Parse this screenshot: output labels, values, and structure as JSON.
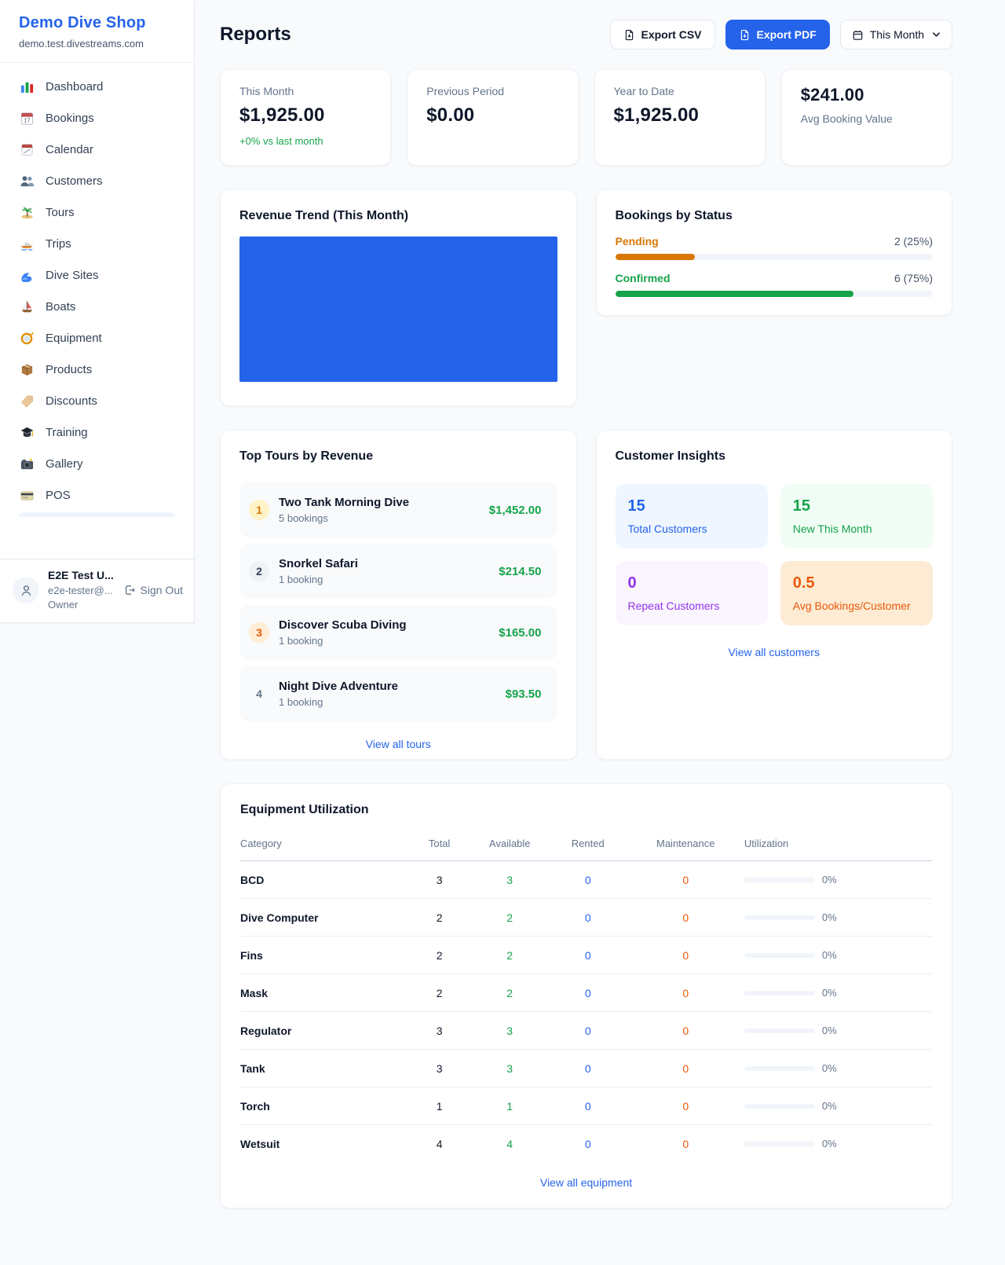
{
  "colors": {
    "accent": "#2563eb",
    "positive_green": "#16a34a",
    "pending_orange": "#d97706",
    "maintenance_orange": "#ea580c",
    "rented_blue": "#2563eb",
    "repeat_purple": "#9333ea",
    "revenue_chart_blue": "#2563eb"
  },
  "sidebar": {
    "title": "Demo Dive Shop",
    "subdomain": "demo.test.divestreams.com",
    "items": [
      {
        "icon": "dashboard-icon",
        "label": "Dashboard"
      },
      {
        "icon": "bookings-icon",
        "label": "Bookings"
      },
      {
        "icon": "calendar-icon",
        "label": "Calendar"
      },
      {
        "icon": "customers-icon",
        "label": "Customers"
      },
      {
        "icon": "tours-icon",
        "label": "Tours"
      },
      {
        "icon": "trips-icon",
        "label": "Trips"
      },
      {
        "icon": "dive-sites-icon",
        "label": "Dive Sites"
      },
      {
        "icon": "boats-icon",
        "label": "Boats"
      },
      {
        "icon": "equipment-icon",
        "label": "Equipment"
      },
      {
        "icon": "products-icon",
        "label": "Products"
      },
      {
        "icon": "discounts-icon",
        "label": "Discounts"
      },
      {
        "icon": "training-icon",
        "label": "Training"
      },
      {
        "icon": "gallery-icon",
        "label": "Gallery"
      },
      {
        "icon": "pos-icon",
        "label": "POS"
      }
    ],
    "user": {
      "name": "E2E Test U...",
      "email": "e2e-tester@...",
      "role": "Owner",
      "sign_out_label": "Sign Out"
    }
  },
  "header": {
    "title": "Reports",
    "export_csv_label": "Export CSV",
    "export_pdf_label": "Export PDF",
    "period_label": "This Month"
  },
  "stats": {
    "this_month": {
      "label": "This Month",
      "value": "$1,925.00",
      "delta": "+0% vs last month"
    },
    "previous_period": {
      "label": "Previous Period",
      "value": "$0.00"
    },
    "year_to_date": {
      "label": "Year to Date",
      "value": "$1,925.00"
    },
    "avg_booking": {
      "value": "$241.00",
      "label": "Avg Booking Value"
    }
  },
  "revenue_trend": {
    "title": "Revenue Trend (This Month)"
  },
  "bookings_by_status": {
    "title": "Bookings by Status",
    "rows": [
      {
        "label": "Pending",
        "value": "2 (25%)",
        "pct": 25
      },
      {
        "label": "Confirmed",
        "value": "6 (75%)",
        "pct": 75
      }
    ]
  },
  "top_tours": {
    "title": "Top Tours by Revenue",
    "items": [
      {
        "rank": "1",
        "name": "Two Tank Morning Dive",
        "bookings": "5 bookings",
        "revenue": "$1,452.00"
      },
      {
        "rank": "2",
        "name": "Snorkel Safari",
        "bookings": "1 booking",
        "revenue": "$214.50"
      },
      {
        "rank": "3",
        "name": "Discover Scuba Diving",
        "bookings": "1 booking",
        "revenue": "$165.00"
      },
      {
        "rank": "4",
        "name": "Night Dive Adventure",
        "bookings": "1 booking",
        "revenue": "$93.50"
      }
    ],
    "link_label": "View all tours"
  },
  "customer_insights": {
    "title": "Customer Insights",
    "tiles": [
      {
        "value": "15",
        "label": "Total Customers"
      },
      {
        "value": "15",
        "label": "New This Month"
      },
      {
        "value": "0",
        "label": "Repeat Customers"
      },
      {
        "value": "0.5",
        "label": "Avg Bookings/Customer"
      }
    ],
    "link_label": "View all customers"
  },
  "equipment_utilization": {
    "title": "Equipment Utilization",
    "headers": [
      "Category",
      "Total",
      "Available",
      "Rented",
      "Maintenance",
      "Utilization"
    ],
    "rows": [
      {
        "category": "BCD",
        "total": "3",
        "available": "3",
        "rented": "0",
        "maintenance": "0",
        "utilization": "0%",
        "utilization_pct": 0
      },
      {
        "category": "Dive Computer",
        "total": "2",
        "available": "2",
        "rented": "0",
        "maintenance": "0",
        "utilization": "0%",
        "utilization_pct": 0
      },
      {
        "category": "Fins",
        "total": "2",
        "available": "2",
        "rented": "0",
        "maintenance": "0",
        "utilization": "0%",
        "utilization_pct": 0
      },
      {
        "category": "Mask",
        "total": "2",
        "available": "2",
        "rented": "0",
        "maintenance": "0",
        "utilization": "0%",
        "utilization_pct": 0
      },
      {
        "category": "Regulator",
        "total": "3",
        "available": "3",
        "rented": "0",
        "maintenance": "0",
        "utilization": "0%",
        "utilization_pct": 0
      },
      {
        "category": "Tank",
        "total": "3",
        "available": "3",
        "rented": "0",
        "maintenance": "0",
        "utilization": "0%",
        "utilization_pct": 0
      },
      {
        "category": "Torch",
        "total": "1",
        "available": "1",
        "rented": "0",
        "maintenance": "0",
        "utilization": "0%",
        "utilization_pct": 0
      },
      {
        "category": "Wetsuit",
        "total": "4",
        "available": "4",
        "rented": "0",
        "maintenance": "0",
        "utilization": "0%",
        "utilization_pct": 0
      }
    ],
    "link_label": "View all equipment"
  }
}
